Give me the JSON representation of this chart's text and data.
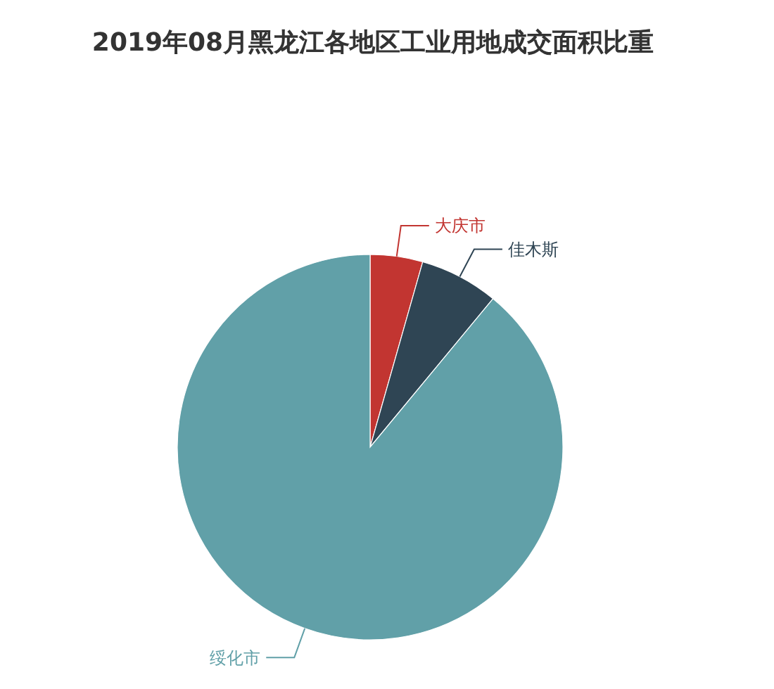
{
  "chart_data": {
    "type": "pie",
    "title": "2019年08月黑龙江各地区工业用地成交面积比重",
    "categories": [
      "大庆市",
      "佳木斯",
      "绥化市"
    ],
    "values": [
      4.4,
      6.6,
      89.0
    ],
    "colors": [
      "#c23531",
      "#2f4554",
      "#61a0a8"
    ],
    "legend": false
  }
}
